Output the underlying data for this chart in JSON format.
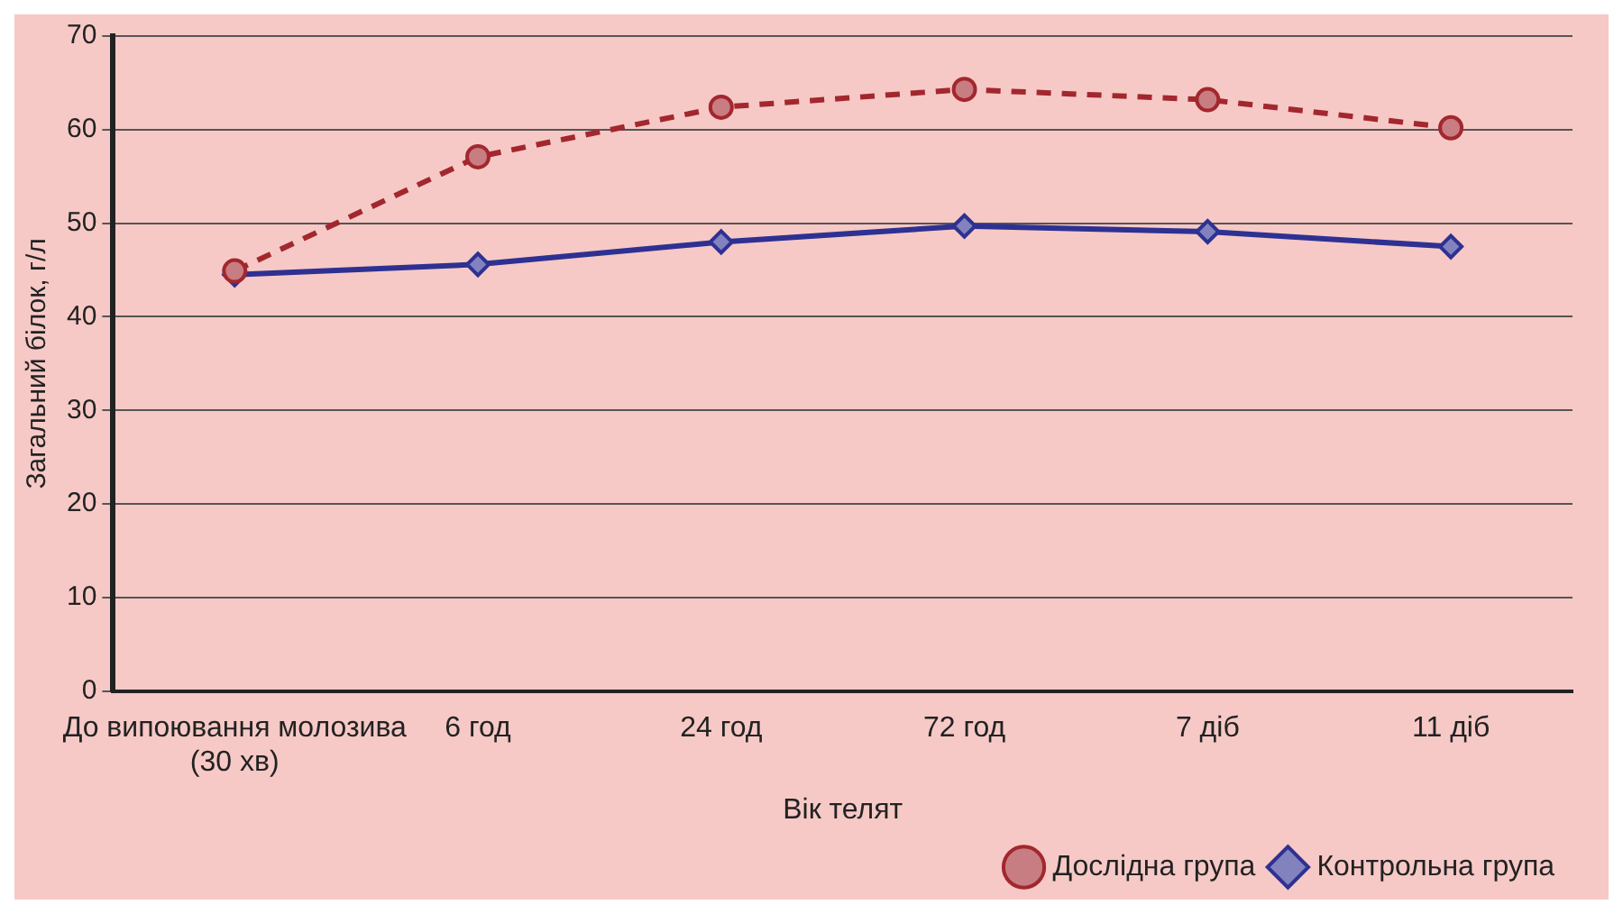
{
  "chart_data": {
    "type": "line",
    "xlabel": "Вік телят",
    "ylabel": "Загальний білок, г/л",
    "categories": [
      "До випоювання молозива (30 хв)",
      "6 год",
      "24 год",
      "72 год",
      "7 діб",
      "11 діб"
    ],
    "series": [
      {
        "name": "Контрольна група",
        "color": "#2e3192",
        "values": [
          44.5,
          45.6,
          48.0,
          49.7,
          49.1,
          47.5
        ],
        "marker": "diamond",
        "line_style": "solid"
      },
      {
        "name": "Дослідна група",
        "color": "#a3272e",
        "values": [
          44.9,
          57.1,
          62.4,
          64.3,
          63.2,
          60.2
        ],
        "marker": "circle",
        "line_style": "dashed"
      }
    ],
    "ylim": [
      0,
      70
    ],
    "yticks": [
      0,
      10,
      20,
      30,
      40,
      50,
      60,
      70
    ],
    "grid": "y",
    "legend": "bottom right"
  }
}
